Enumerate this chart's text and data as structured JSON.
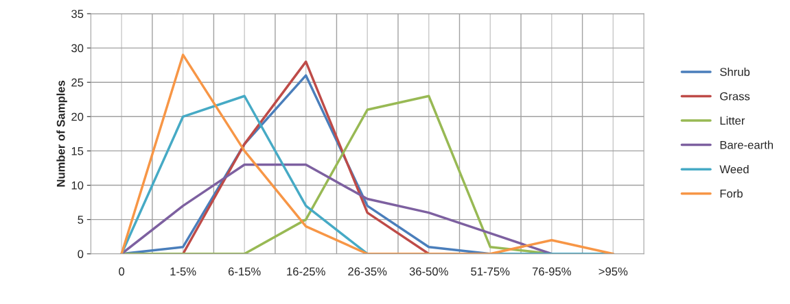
{
  "chart_data": {
    "type": "line",
    "ylabel": "Number of Samples",
    "categories": [
      "0",
      "1-5%",
      "6-15%",
      "16-25%",
      "26-35%",
      "36-50%",
      "51-75%",
      "76-95%",
      ">95%"
    ],
    "ylim": [
      0,
      35
    ],
    "yticks": [
      0,
      5,
      10,
      15,
      20,
      25,
      30,
      35
    ],
    "grid": true,
    "legend": "right",
    "marker": "none",
    "series": [
      {
        "name": "Shrub",
        "color": "#4a7ebb",
        "values": [
          0,
          1,
          16,
          26,
          7,
          1,
          0,
          null,
          null
        ]
      },
      {
        "name": "Grass",
        "color": "#be4b48",
        "values": [
          null,
          0,
          16,
          28,
          6,
          0,
          null,
          null,
          null
        ]
      },
      {
        "name": "Litter",
        "color": "#98b954",
        "values": [
          0,
          0,
          0,
          5,
          21,
          23,
          1,
          0,
          null
        ]
      },
      {
        "name": "Bare-earth",
        "color": "#7d60a0",
        "values": [
          0,
          7,
          13,
          13,
          8,
          6,
          3,
          0,
          null
        ]
      },
      {
        "name": "Weed",
        "color": "#46aac5",
        "values": [
          0,
          20,
          23,
          7,
          0,
          0,
          0,
          0,
          0
        ]
      },
      {
        "name": "Forb",
        "color": "#f79646",
        "values": [
          0,
          29,
          15,
          4,
          0,
          0,
          0,
          2,
          0
        ]
      }
    ]
  }
}
